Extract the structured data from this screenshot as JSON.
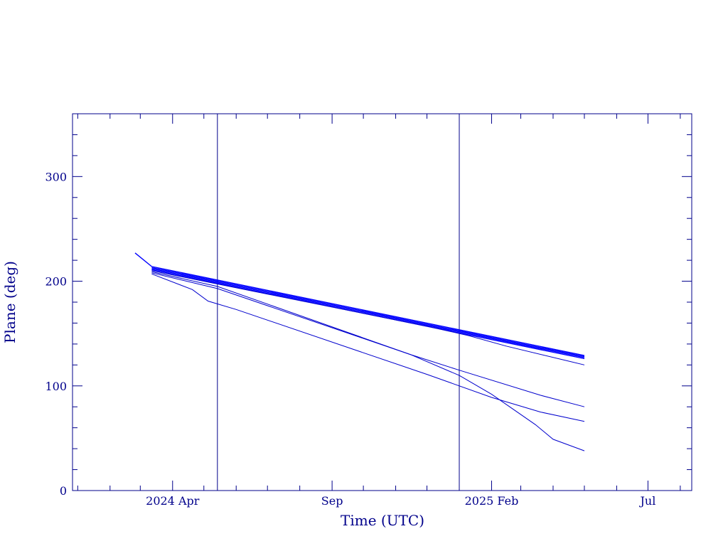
{
  "chart_data": {
    "type": "line",
    "title": "",
    "xlabel": "Time (UTC)",
    "ylabel": "Plane (deg)",
    "x_tick_labels": [
      {
        "date": "2024-04-01",
        "label": "2024 Apr"
      },
      {
        "date": "2024-09-01",
        "label": "Sep"
      },
      {
        "date": "2025-02-01",
        "label": "2025 Feb"
      },
      {
        "date": "2025-07-01",
        "label": "Jul"
      }
    ],
    "xlim": [
      "2023-12-27",
      "2025-08-12"
    ],
    "ylim": [
      0,
      360
    ],
    "y_ticks": [
      0,
      100,
      200,
      300
    ],
    "grid": false,
    "colors": {
      "axis": "#00008b",
      "series": "#0000cd",
      "series_bold": "#0000ff"
    },
    "vertical_markers": [
      "2024-05-14",
      "2025-01-01"
    ],
    "series": [
      {
        "points": [
          [
            "2024-02-25",
            227
          ],
          [
            "2024-03-12",
            214
          ],
          [
            "2025-05-01",
            129
          ]
        ],
        "emphasis": true
      },
      {
        "points": [
          [
            "2024-03-12",
            213
          ],
          [
            "2025-05-01",
            128
          ]
        ],
        "emphasis": true
      },
      {
        "points": [
          [
            "2024-03-12",
            212
          ],
          [
            "2025-05-01",
            127
          ]
        ],
        "emphasis": true
      },
      {
        "points": [
          [
            "2024-03-12",
            211
          ],
          [
            "2025-05-01",
            126
          ]
        ],
        "emphasis": true
      },
      {
        "points": [
          [
            "2024-03-12",
            210
          ],
          [
            "2024-12-01",
            157
          ],
          [
            "2025-01-10",
            148
          ],
          [
            "2025-02-15",
            138
          ],
          [
            "2025-05-01",
            120
          ]
        ]
      },
      {
        "points": [
          [
            "2024-03-12",
            208
          ],
          [
            "2024-05-14",
            193
          ],
          [
            "2024-11-15",
            130
          ],
          [
            "2025-01-01",
            115
          ],
          [
            "2025-03-20",
            91
          ],
          [
            "2025-05-01",
            80
          ]
        ]
      },
      {
        "points": [
          [
            "2024-03-12",
            207
          ],
          [
            "2024-04-20",
            192
          ],
          [
            "2024-05-05",
            181
          ],
          [
            "2024-06-01",
            173
          ],
          [
            "2024-12-01",
            111
          ],
          [
            "2025-02-01",
            89
          ],
          [
            "2025-03-20",
            75
          ],
          [
            "2025-05-01",
            66
          ]
        ]
      },
      {
        "points": [
          [
            "2024-03-12",
            209
          ],
          [
            "2024-05-14",
            195
          ],
          [
            "2024-11-15",
            130
          ],
          [
            "2025-01-01",
            110
          ],
          [
            "2025-02-01",
            92
          ],
          [
            "2025-03-15",
            63
          ],
          [
            "2025-04-01",
            49
          ],
          [
            "2025-05-01",
            38
          ]
        ]
      }
    ]
  }
}
